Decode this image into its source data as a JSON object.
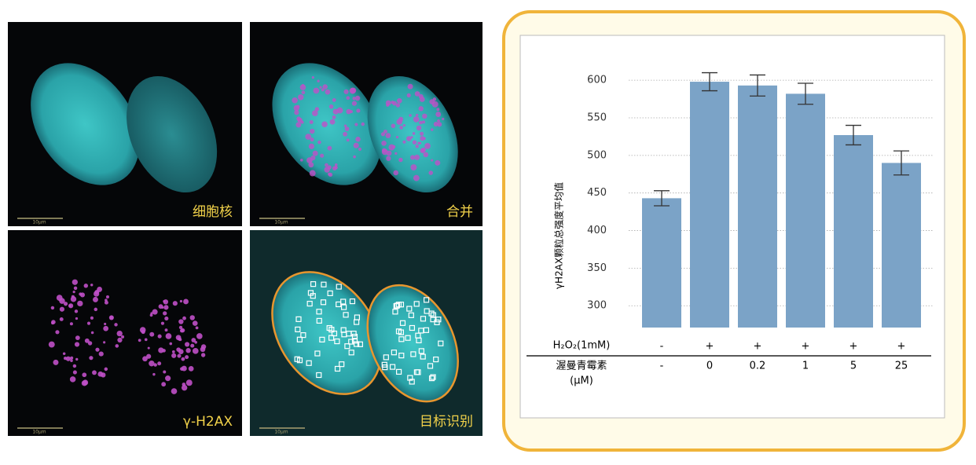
{
  "panels": [
    {
      "label": "细胞核",
      "scale": "10μm"
    },
    {
      "label": "合并",
      "scale": "10μm"
    },
    {
      "label": "γ-H2AX",
      "scale": "10μm"
    },
    {
      "label": "目标识别",
      "scale": "10μm"
    }
  ],
  "chart_data": {
    "type": "bar",
    "y_label": "γH2AX颗粒总强度平均值",
    "categories": [
      "-",
      "0",
      "0.2",
      "1",
      "5",
      "25"
    ],
    "category_label": [
      "渥曼青霉素",
      "(μM)"
    ],
    "h2o2": {
      "label": "H₂O₂(1mM)",
      "values": [
        "-",
        "+",
        "+",
        "+",
        "+",
        "+"
      ]
    },
    "values": [
      443,
      598,
      593,
      582,
      527,
      490
    ],
    "errors": [
      10,
      12,
      14,
      14,
      13,
      16
    ],
    "color": "#7ba3c7",
    "ylim": [
      271,
      620
    ],
    "yticks": [
      300,
      350,
      400,
      450,
      500,
      550,
      600
    ],
    "grid": true
  }
}
